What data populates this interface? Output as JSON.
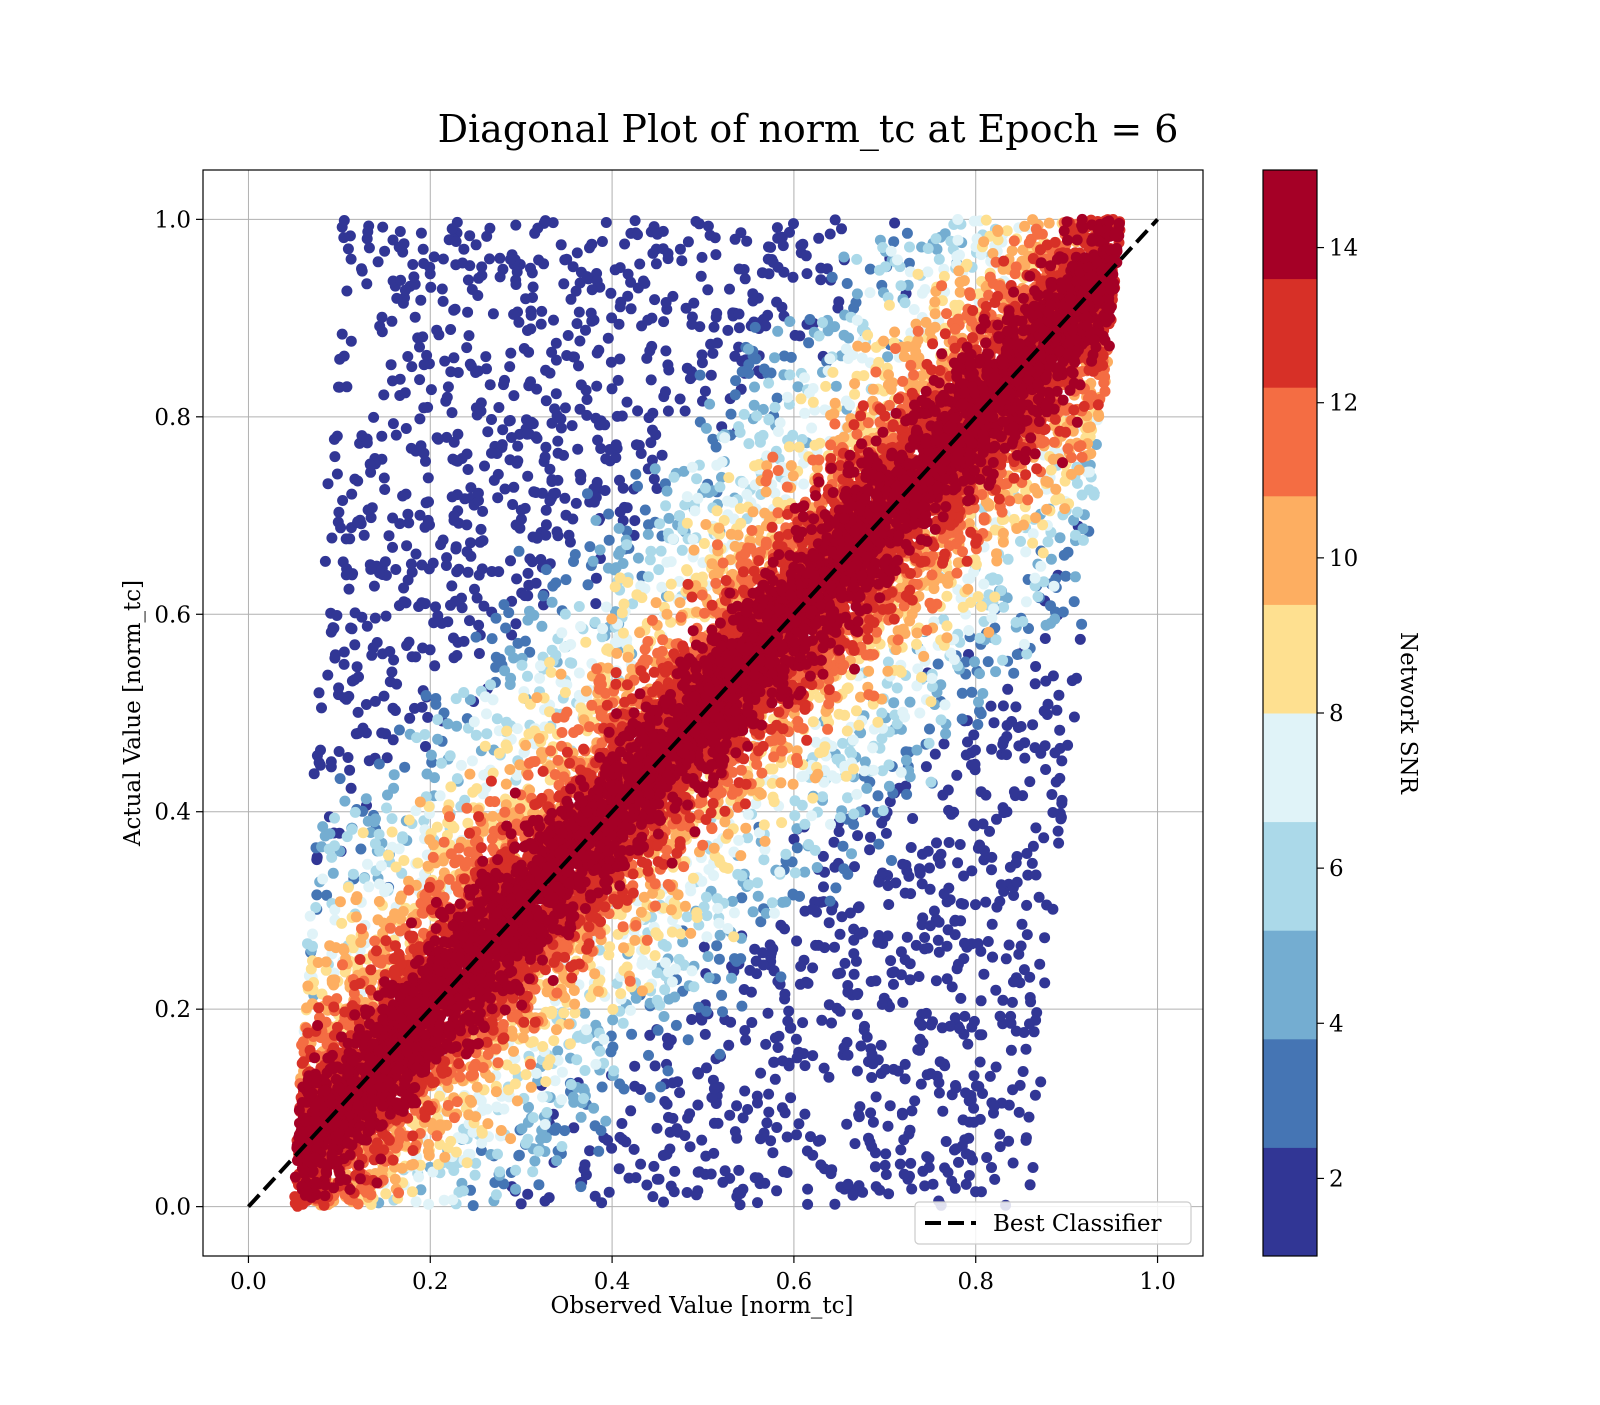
{
  "chart_data": {
    "type": "scatter",
    "title": "Diagonal Plot of norm_tc at Epoch = 6",
    "xlabel": "Observed Value [norm_tc]",
    "ylabel": "Actual Value [norm_tc]",
    "xlim": [
      -0.05,
      1.05
    ],
    "ylim": [
      -0.05,
      1.05
    ],
    "x_ticks": [
      "0.0",
      "0.2",
      "0.4",
      "0.6",
      "0.8",
      "1.0"
    ],
    "y_ticks": [
      "0.0",
      "0.2",
      "0.4",
      "0.6",
      "0.8",
      "1.0"
    ],
    "grid": true,
    "reference_line": {
      "label": "Best Classifier",
      "x": [
        0.0,
        1.0
      ],
      "y": [
        0.0,
        1.0
      ],
      "style": "dashed",
      "color": "#000000"
    },
    "legend_position": "lower-right",
    "colorbar": {
      "label": "Network SNR",
      "range": [
        1,
        15
      ],
      "ticks": [
        "2",
        "4",
        "6",
        "8",
        "10",
        "12",
        "14"
      ],
      "bands": [
        "#313695",
        "#4575b4",
        "#74add1",
        "#abd9e9",
        "#e0f3f8",
        "#fee090",
        "#fdae61",
        "#f46d43",
        "#d73027",
        "#a50026"
      ]
    },
    "point_description": {
      "band_low_x": 0.05,
      "band_high_x": 0.96,
      "y_range": [
        0.0,
        1.0
      ],
      "high_snr_near_diagonal": true
    }
  }
}
